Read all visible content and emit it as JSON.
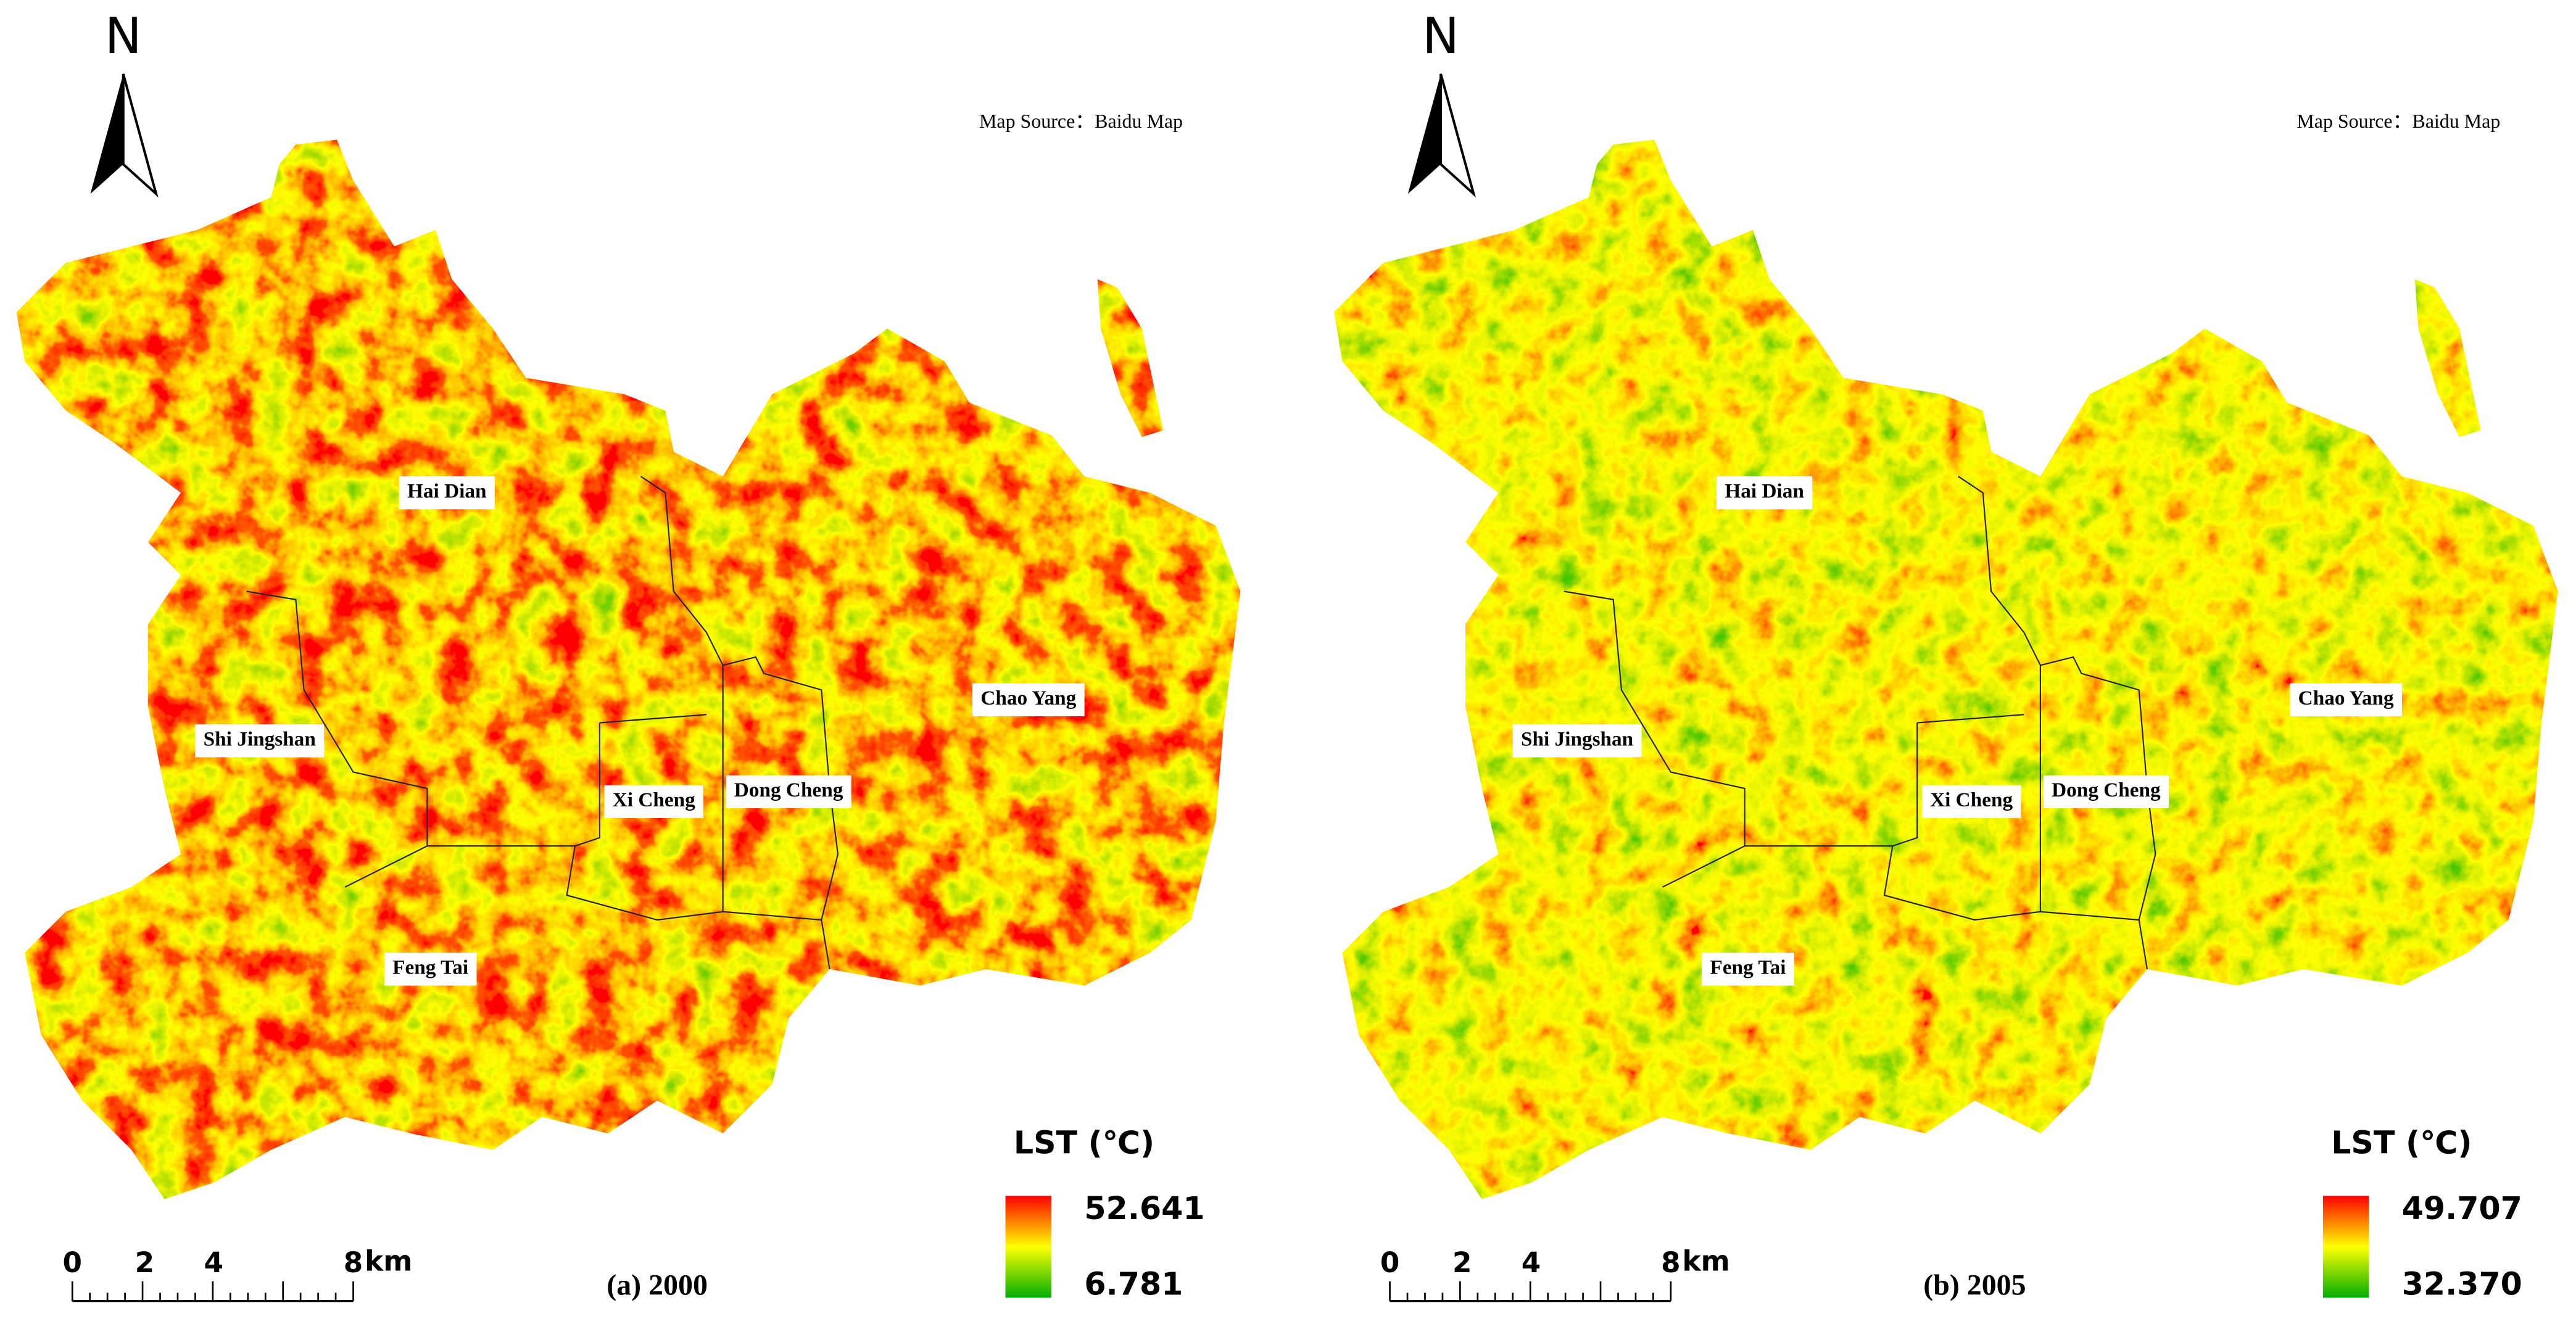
{
  "panels": [
    {
      "north": "N",
      "source": "Map Source：Baidu Map",
      "caption": "(a)  2000",
      "districts": [
        "Hai Dian",
        "Shi Jingshan",
        "Xi Cheng",
        "Dong Cheng",
        "Chao Yang",
        "Feng Tai"
      ],
      "legend": {
        "title": "LST (℃)",
        "max": "52.641",
        "min": "6.781"
      },
      "scale": {
        "ticks": [
          "0",
          "2",
          "4",
          "8"
        ],
        "unit": "km"
      }
    },
    {
      "north": "N",
      "source": "Map Source：Baidu Map",
      "caption": "(b)  2005",
      "districts": [
        "Hai Dian",
        "Shi Jingshan",
        "Xi Cheng",
        "Dong Cheng",
        "Chao Yang",
        "Feng Tai"
      ],
      "legend": {
        "title": "LST (℃)",
        "max": "49.707",
        "min": "32.370"
      },
      "scale": {
        "ticks": [
          "0",
          "2",
          "4",
          "8"
        ],
        "unit": "km"
      }
    }
  ]
}
